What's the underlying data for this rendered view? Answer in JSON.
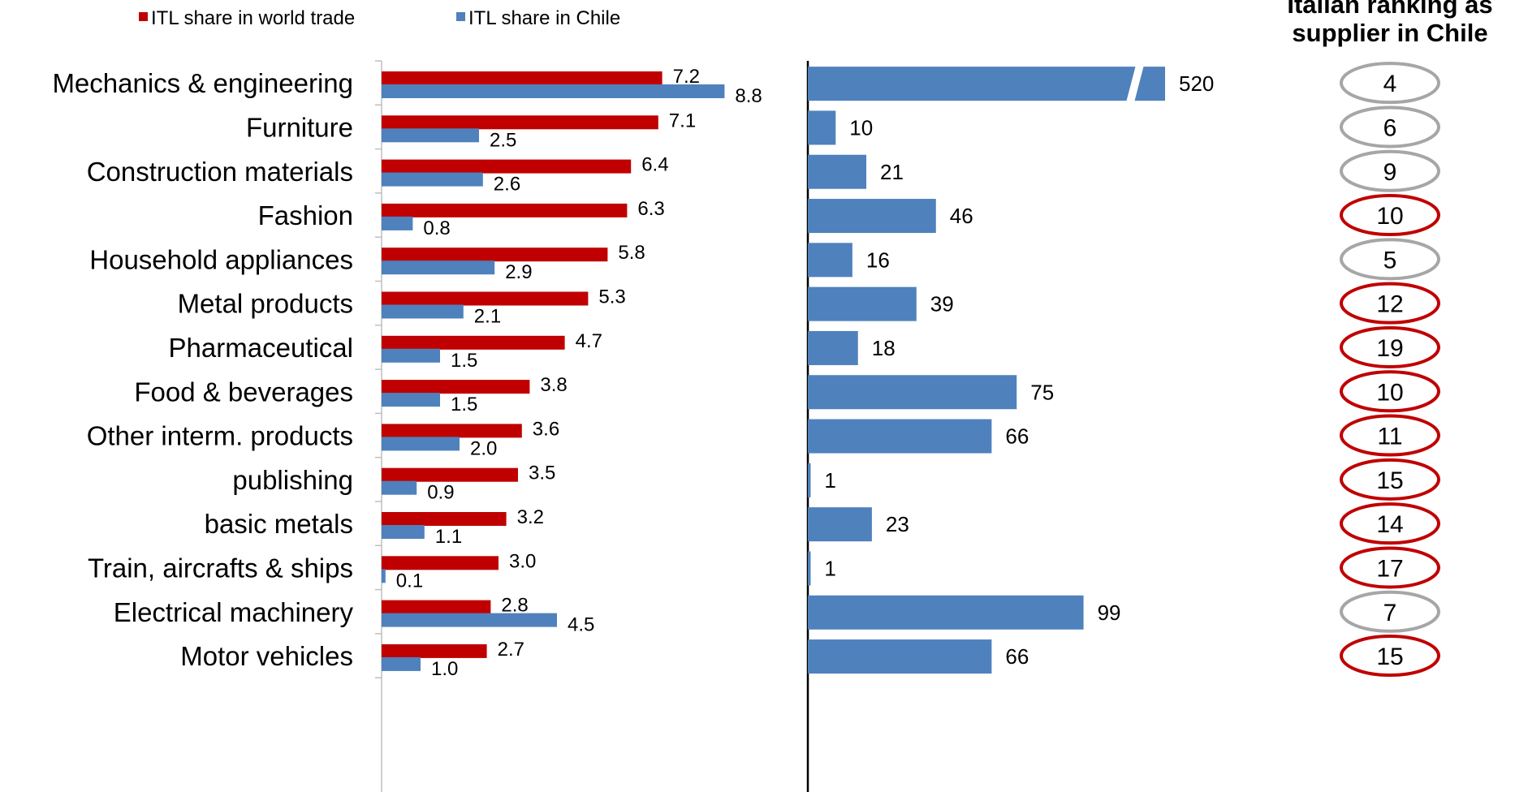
{
  "chart_data": [
    {
      "type": "bar",
      "orientation": "horizontal",
      "categories": [
        "Mechanics & engineering",
        "Furniture",
        "Construction materials",
        "Fashion",
        "Household appliances",
        "Metal products",
        "Pharmaceutical",
        "Food & beverages",
        "Other interm. products",
        "publishing",
        "basic metals",
        "Train, aircrafts & ships",
        "Electrical machinery",
        "Motor vehicles"
      ],
      "series": [
        {
          "name": "ITL share in world trade",
          "color": "#c00000",
          "values": [
            7.2,
            7.1,
            6.4,
            6.3,
            5.8,
            5.3,
            4.7,
            3.8,
            3.6,
            3.5,
            3.2,
            3.0,
            2.8,
            2.7
          ],
          "labels": [
            "7.2",
            "7.1",
            "6.4",
            "6.3",
            "5.8",
            "5.3",
            "4.7",
            "3.8",
            "3.6",
            "3.5",
            "3.2",
            "3.0",
            "2.8",
            "2.7"
          ]
        },
        {
          "name": "ITL share in Chile",
          "color": "#4f81bd",
          "values": [
            8.8,
            2.5,
            2.6,
            0.8,
            2.9,
            2.1,
            1.5,
            1.5,
            2.0,
            0.9,
            1.1,
            0.1,
            4.5,
            1.0
          ],
          "labels": [
            "8.8",
            "2.5",
            "2.6",
            "0.8",
            "2.9",
            "2.1",
            "1.5",
            "1.5",
            "2.0",
            "0.9",
            "1.1",
            "0.1",
            "4.5",
            "1.0"
          ]
        }
      ],
      "legend_position": "top-left",
      "grid": false
    },
    {
      "type": "bar",
      "orientation": "horizontal",
      "categories": [
        "Mechanics & engineering",
        "Furniture",
        "Construction materials",
        "Fashion",
        "Household appliances",
        "Metal products",
        "Pharmaceutical",
        "Food & beverages",
        "Other interm. products",
        "publishing",
        "basic metals",
        "Train, aircrafts & ships",
        "Electrical machinery",
        "Motor vehicles"
      ],
      "series": [
        {
          "color": "#4f81bd",
          "values": [
            520,
            10,
            21,
            46,
            16,
            39,
            18,
            75,
            66,
            1,
            23,
            1,
            99,
            66
          ],
          "labels": [
            "520",
            "10",
            "21",
            "46",
            "16",
            "39",
            "18",
            "75",
            "66",
            "1",
            "23",
            "1",
            "99",
            "66"
          ]
        }
      ],
      "axis_break": true,
      "grid": false
    },
    {
      "type": "table",
      "title": "Italian ranking as supplier in Chile",
      "rankings": [
        "4",
        "6",
        "9",
        "10",
        "5",
        "12",
        "19",
        "10",
        "11",
        "15",
        "14",
        "17",
        "7",
        "15"
      ],
      "highlight": [
        false,
        false,
        false,
        true,
        false,
        true,
        true,
        true,
        true,
        true,
        true,
        true,
        false,
        true
      ],
      "colors": {
        "highlight": "#c00000",
        "normal": "#a6a6a6"
      }
    }
  ]
}
